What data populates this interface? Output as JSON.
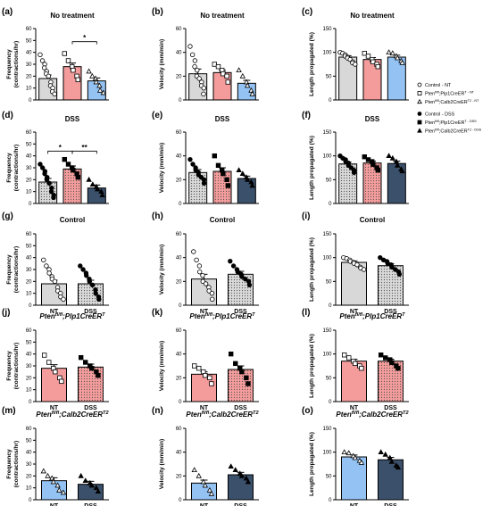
{
  "colors": {
    "control": "#d8d8d8",
    "plp1": "#f49c9c",
    "calb2": "#93c2f3",
    "calb2_dss": "#3b506b",
    "point": "#000000"
  },
  "legend": [
    {
      "label": "Control - NT",
      "marker": "circle-open"
    },
    {
      "label": "Pten^fl/fl;Plp1CreER^T - NT",
      "marker": "square-open"
    },
    {
      "label": "Pten^fl/fl;Calb2CreER^T2 - NT",
      "marker": "triangle-open"
    },
    {
      "label": "Control - DSS",
      "marker": "circle"
    },
    {
      "label": "Pten^fl/fl;Plp1CreER^T - DSS",
      "marker": "square"
    },
    {
      "label": "Pten^fl/fl;Calb2CreER^T2 - DSS",
      "marker": "triangle"
    }
  ],
  "chart_data": [
    {
      "letter": "(a)",
      "title": "No treatment",
      "type": "bar",
      "ylabel": [
        "Frequency",
        "(contractions/hr)"
      ],
      "ylim": [
        0,
        60
      ],
      "yticks": [
        0,
        10,
        20,
        30,
        40,
        50,
        60
      ],
      "categories": [
        "",
        "",
        ""
      ],
      "series": [
        {
          "group": "control",
          "fill": "control",
          "pattern": "",
          "marker": "circle-open",
          "mean": 18,
          "sem": 3,
          "points": [
            38,
            33,
            30,
            27,
            24,
            22,
            20,
            15,
            12,
            10,
            7,
            5
          ]
        },
        {
          "group": "plp1",
          "fill": "plp1",
          "pattern": "",
          "marker": "square-open",
          "mean": 28,
          "sem": 3,
          "points": [
            39,
            33,
            28,
            25,
            20,
            17
          ]
        },
        {
          "group": "calb2",
          "fill": "calb2",
          "pattern": "",
          "marker": "triangle-open",
          "mean": 16,
          "sem": 2.5,
          "points": [
            24,
            20,
            18,
            15,
            12,
            8,
            6
          ]
        }
      ],
      "sig": [
        {
          "from": 1,
          "to": 2,
          "label": "*",
          "level": 49
        }
      ]
    },
    {
      "letter": "(b)",
      "title": "No treatment",
      "type": "bar",
      "ylabel": [
        "Velocity (mm/min)"
      ],
      "ylim": [
        0,
        60
      ],
      "yticks": [
        0,
        20,
        40,
        60
      ],
      "categories": [
        "",
        "",
        ""
      ],
      "series": [
        {
          "group": "control",
          "fill": "control",
          "pattern": "",
          "marker": "circle-open",
          "mean": 22,
          "sem": 4,
          "points": [
            45,
            38,
            33,
            28,
            25,
            20,
            18,
            15,
            12,
            10,
            5
          ]
        },
        {
          "group": "plp1",
          "fill": "plp1",
          "pattern": "",
          "marker": "square-open",
          "mean": 23,
          "sem": 2,
          "points": [
            30,
            28,
            25,
            22,
            20,
            15
          ]
        },
        {
          "group": "calb2",
          "fill": "calb2",
          "pattern": "",
          "marker": "triangle-open",
          "mean": 14,
          "sem": 2.5,
          "points": [
            25,
            20,
            15,
            12,
            8,
            5
          ]
        }
      ],
      "sig": []
    },
    {
      "letter": "(c)",
      "title": "No treatment",
      "type": "bar",
      "ylabel": [
        "Length propagated (%)"
      ],
      "ylim": [
        0,
        150
      ],
      "yticks": [
        0,
        50,
        100,
        150
      ],
      "categories": [
        "",
        "",
        ""
      ],
      "series": [
        {
          "group": "control",
          "fill": "control",
          "pattern": "",
          "marker": "circle-open",
          "mean": 90,
          "sem": 3,
          "points": [
            100,
            98,
            95,
            92,
            90,
            88,
            85,
            80,
            78,
            75
          ]
        },
        {
          "group": "plp1",
          "fill": "plp1",
          "pattern": "",
          "marker": "square-open",
          "mean": 85,
          "sem": 4,
          "points": [
            98,
            92,
            85,
            80,
            75,
            70
          ]
        },
        {
          "group": "calb2",
          "fill": "calb2",
          "pattern": "",
          "marker": "triangle-open",
          "mean": 90,
          "sem": 4,
          "points": [
            100,
            98,
            92,
            88,
            82,
            78
          ]
        }
      ],
      "sig": []
    },
    {
      "letter": "(d)",
      "title": "DSS",
      "type": "bar",
      "ylabel": [
        "Frequency",
        "(contractions/hr)"
      ],
      "ylim": [
        0,
        60
      ],
      "yticks": [
        0,
        10,
        20,
        30,
        40,
        50,
        60
      ],
      "categories": [
        "",
        "",
        ""
      ],
      "series": [
        {
          "group": "control",
          "fill": "control",
          "pattern": "dots",
          "marker": "circle",
          "mean": 18,
          "sem": 3,
          "points": [
            33,
            30,
            27,
            25,
            22,
            20,
            17,
            13,
            10,
            7,
            5
          ]
        },
        {
          "group": "plp1",
          "fill": "plp1",
          "pattern": "dots",
          "marker": "square",
          "mean": 29,
          "sem": 2.5,
          "points": [
            37,
            33,
            30,
            28,
            25,
            22
          ]
        },
        {
          "group": "calb2",
          "fill": "calb2_dss",
          "pattern": "",
          "marker": "triangle",
          "mean": 13,
          "sem": 2.5,
          "points": [
            20,
            16,
            14,
            12,
            10,
            7
          ]
        }
      ],
      "sig": [
        {
          "from": 0,
          "to": 1,
          "label": "*",
          "level": 44
        },
        {
          "from": 1,
          "to": 2,
          "label": "**",
          "level": 44
        }
      ]
    },
    {
      "letter": "(e)",
      "title": "DSS",
      "type": "bar",
      "ylabel": [
        "Velocity (mm/min)"
      ],
      "ylim": [
        0,
        60
      ],
      "yticks": [
        0,
        20,
        40,
        60
      ],
      "categories": [
        "",
        "",
        ""
      ],
      "series": [
        {
          "group": "control",
          "fill": "control",
          "pattern": "dots",
          "marker": "circle",
          "mean": 26,
          "sem": 2.5,
          "points": [
            37,
            33,
            30,
            28,
            26,
            24,
            22,
            20,
            17
          ]
        },
        {
          "group": "plp1",
          "fill": "plp1",
          "pattern": "dots",
          "marker": "square",
          "mean": 27,
          "sem": 3,
          "points": [
            40,
            32,
            28,
            25,
            20,
            15
          ]
        },
        {
          "group": "calb2",
          "fill": "calb2_dss",
          "pattern": "",
          "marker": "triangle",
          "mean": 21,
          "sem": 2,
          "points": [
            28,
            25,
            22,
            20,
            18,
            15
          ]
        }
      ],
      "sig": []
    },
    {
      "letter": "(f)",
      "title": "DSS",
      "type": "bar",
      "ylabel": [
        "Length propagated (%)"
      ],
      "ylim": [
        0,
        150
      ],
      "yticks": [
        0,
        50,
        100,
        150
      ],
      "categories": [
        "",
        "",
        ""
      ],
      "series": [
        {
          "group": "control",
          "fill": "control",
          "pattern": "dots",
          "marker": "circle",
          "mean": 83,
          "sem": 4,
          "points": [
            100,
            95,
            92,
            88,
            85,
            80,
            75,
            70,
            65
          ]
        },
        {
          "group": "plp1",
          "fill": "plp1",
          "pattern": "dots",
          "marker": "square",
          "mean": 85,
          "sem": 4,
          "points": [
            98,
            92,
            88,
            82,
            75,
            70
          ]
        },
        {
          "group": "calb2",
          "fill": "calb2_dss",
          "pattern": "",
          "marker": "triangle",
          "mean": 84,
          "sem": 5,
          "points": [
            100,
            95,
            88,
            80,
            72,
            68
          ]
        }
      ],
      "sig": []
    },
    {
      "letter": "(g)",
      "title": "Control",
      "type": "bar",
      "ylabel": [
        "Frequency",
        "(contractions/hr)"
      ],
      "ylim": [
        0,
        60
      ],
      "yticks": [
        0,
        10,
        20,
        30,
        40,
        50,
        60
      ],
      "categories": [
        "NT",
        "DSS"
      ],
      "series": [
        {
          "group": "control",
          "fill": "control",
          "pattern": "",
          "marker": "circle-open",
          "mean": 18,
          "sem": 3,
          "points": [
            38,
            33,
            30,
            27,
            24,
            22,
            20,
            15,
            12,
            10,
            7,
            5
          ]
        },
        {
          "group": "control",
          "fill": "control",
          "pattern": "dots",
          "marker": "circle",
          "mean": 18,
          "sem": 3,
          "points": [
            33,
            30,
            27,
            25,
            22,
            20,
            17,
            13,
            10,
            7,
            5
          ]
        }
      ],
      "sig": []
    },
    {
      "letter": "(h)",
      "title": "Control",
      "type": "bar",
      "ylabel": [
        "Velocity (mm/min)"
      ],
      "ylim": [
        0,
        60
      ],
      "yticks": [
        0,
        20,
        40,
        60
      ],
      "categories": [
        "NT",
        "DSS"
      ],
      "series": [
        {
          "group": "control",
          "fill": "control",
          "pattern": "",
          "marker": "circle-open",
          "mean": 22,
          "sem": 4,
          "points": [
            45,
            38,
            33,
            28,
            25,
            20,
            18,
            15,
            12,
            10,
            5
          ]
        },
        {
          "group": "control",
          "fill": "control",
          "pattern": "dots",
          "marker": "circle",
          "mean": 26,
          "sem": 2.5,
          "points": [
            37,
            33,
            30,
            28,
            26,
            24,
            22,
            20,
            17
          ]
        }
      ],
      "sig": []
    },
    {
      "letter": "(i)",
      "title": "Control",
      "type": "bar",
      "ylabel": [
        "Length propagated (%)"
      ],
      "ylim": [
        0,
        150
      ],
      "yticks": [
        0,
        50,
        100,
        150
      ],
      "categories": [
        "NT",
        "DSS"
      ],
      "series": [
        {
          "group": "control",
          "fill": "control",
          "pattern": "",
          "marker": "circle-open",
          "mean": 90,
          "sem": 3,
          "points": [
            100,
            98,
            95,
            92,
            90,
            88,
            85,
            80,
            78,
            75
          ]
        },
        {
          "group": "control",
          "fill": "control",
          "pattern": "dots",
          "marker": "circle",
          "mean": 83,
          "sem": 4,
          "points": [
            100,
            95,
            92,
            88,
            85,
            80,
            75,
            70,
            65
          ]
        }
      ],
      "sig": []
    },
    {
      "letter": "(j)",
      "title": "Pten^fl/fl;Plp1CreER^T",
      "type": "bar",
      "ylabel": [
        "Frequency",
        "(contractions/hr)"
      ],
      "ylim": [
        0,
        60
      ],
      "yticks": [
        0,
        10,
        20,
        30,
        40,
        50,
        60
      ],
      "categories": [
        "NT",
        "DSS"
      ],
      "series": [
        {
          "group": "plp1",
          "fill": "plp1",
          "pattern": "",
          "marker": "square-open",
          "mean": 28,
          "sem": 3,
          "points": [
            39,
            33,
            28,
            25,
            20,
            17
          ]
        },
        {
          "group": "plp1",
          "fill": "plp1",
          "pattern": "dots",
          "marker": "square",
          "mean": 29,
          "sem": 2.5,
          "points": [
            37,
            33,
            30,
            28,
            25,
            22
          ]
        }
      ],
      "sig": []
    },
    {
      "letter": "(k)",
      "title": "Pten^fl/fl;Plp1CreER^T",
      "type": "bar",
      "ylabel": [
        "Velocity (mm/min)"
      ],
      "ylim": [
        0,
        60
      ],
      "yticks": [
        0,
        20,
        40,
        60
      ],
      "categories": [
        "NT",
        "DSS"
      ],
      "series": [
        {
          "group": "plp1",
          "fill": "plp1",
          "pattern": "",
          "marker": "square-open",
          "mean": 23,
          "sem": 2,
          "points": [
            30,
            28,
            25,
            22,
            20,
            15
          ]
        },
        {
          "group": "plp1",
          "fill": "plp1",
          "pattern": "dots",
          "marker": "square",
          "mean": 27,
          "sem": 3,
          "points": [
            40,
            32,
            28,
            25,
            20,
            15
          ]
        }
      ],
      "sig": []
    },
    {
      "letter": "(l)",
      "title": "Pten^fl/fl;Plp1CreER^T",
      "type": "bar",
      "ylabel": [
        "Length propagated (%)"
      ],
      "ylim": [
        0,
        150
      ],
      "yticks": [
        0,
        50,
        100,
        150
      ],
      "categories": [
        "NT",
        "DSS"
      ],
      "series": [
        {
          "group": "plp1",
          "fill": "plp1",
          "pattern": "",
          "marker": "square-open",
          "mean": 85,
          "sem": 4,
          "points": [
            98,
            92,
            85,
            80,
            75,
            70
          ]
        },
        {
          "group": "plp1",
          "fill": "plp1",
          "pattern": "dots",
          "marker": "square",
          "mean": 85,
          "sem": 4,
          "points": [
            98,
            92,
            88,
            82,
            75,
            70
          ]
        }
      ],
      "sig": []
    },
    {
      "letter": "(m)",
      "title": "Pten^fl/fl;Calb2CreER^T2",
      "type": "bar",
      "ylabel": [
        "Frequency",
        "(contractions/hr)"
      ],
      "ylim": [
        0,
        60
      ],
      "yticks": [
        0,
        10,
        20,
        30,
        40,
        50,
        60
      ],
      "categories": [
        "NT",
        "DSS"
      ],
      "series": [
        {
          "group": "calb2",
          "fill": "calb2",
          "pattern": "",
          "marker": "triangle-open",
          "mean": 16,
          "sem": 2.5,
          "points": [
            24,
            20,
            18,
            15,
            12,
            8,
            6
          ]
        },
        {
          "group": "calb2",
          "fill": "calb2_dss",
          "pattern": "",
          "marker": "triangle",
          "mean": 13,
          "sem": 2.5,
          "points": [
            20,
            16,
            14,
            12,
            10,
            7
          ]
        }
      ],
      "sig": []
    },
    {
      "letter": "(n)",
      "title": "Pten^fl/fl;Calb2CreER^T2",
      "type": "bar",
      "ylabel": [
        "Velocity (mm/min)"
      ],
      "ylim": [
        0,
        60
      ],
      "yticks": [
        0,
        20,
        40,
        60
      ],
      "categories": [
        "NT",
        "DSS"
      ],
      "series": [
        {
          "group": "calb2",
          "fill": "calb2",
          "pattern": "",
          "marker": "triangle-open",
          "mean": 14,
          "sem": 2.5,
          "points": [
            25,
            20,
            15,
            12,
            8,
            5
          ]
        },
        {
          "group": "calb2",
          "fill": "calb2_dss",
          "pattern": "",
          "marker": "triangle",
          "mean": 21,
          "sem": 2,
          "points": [
            28,
            25,
            22,
            20,
            18,
            15
          ]
        }
      ],
      "sig": []
    },
    {
      "letter": "(o)",
      "title": "Pten^fl/fl;Calb2CreER^T2",
      "type": "bar",
      "ylabel": [
        "Length propagated (%)"
      ],
      "ylim": [
        0,
        150
      ],
      "yticks": [
        0,
        50,
        100,
        150
      ],
      "categories": [
        "NT",
        "DSS"
      ],
      "series": [
        {
          "group": "calb2",
          "fill": "calb2",
          "pattern": "",
          "marker": "triangle-open",
          "mean": 90,
          "sem": 4,
          "points": [
            100,
            98,
            92,
            88,
            82,
            78
          ]
        },
        {
          "group": "calb2",
          "fill": "calb2_dss",
          "pattern": "",
          "marker": "triangle",
          "mean": 84,
          "sem": 5,
          "points": [
            100,
            95,
            88,
            80,
            72,
            68
          ]
        }
      ],
      "sig": []
    }
  ]
}
